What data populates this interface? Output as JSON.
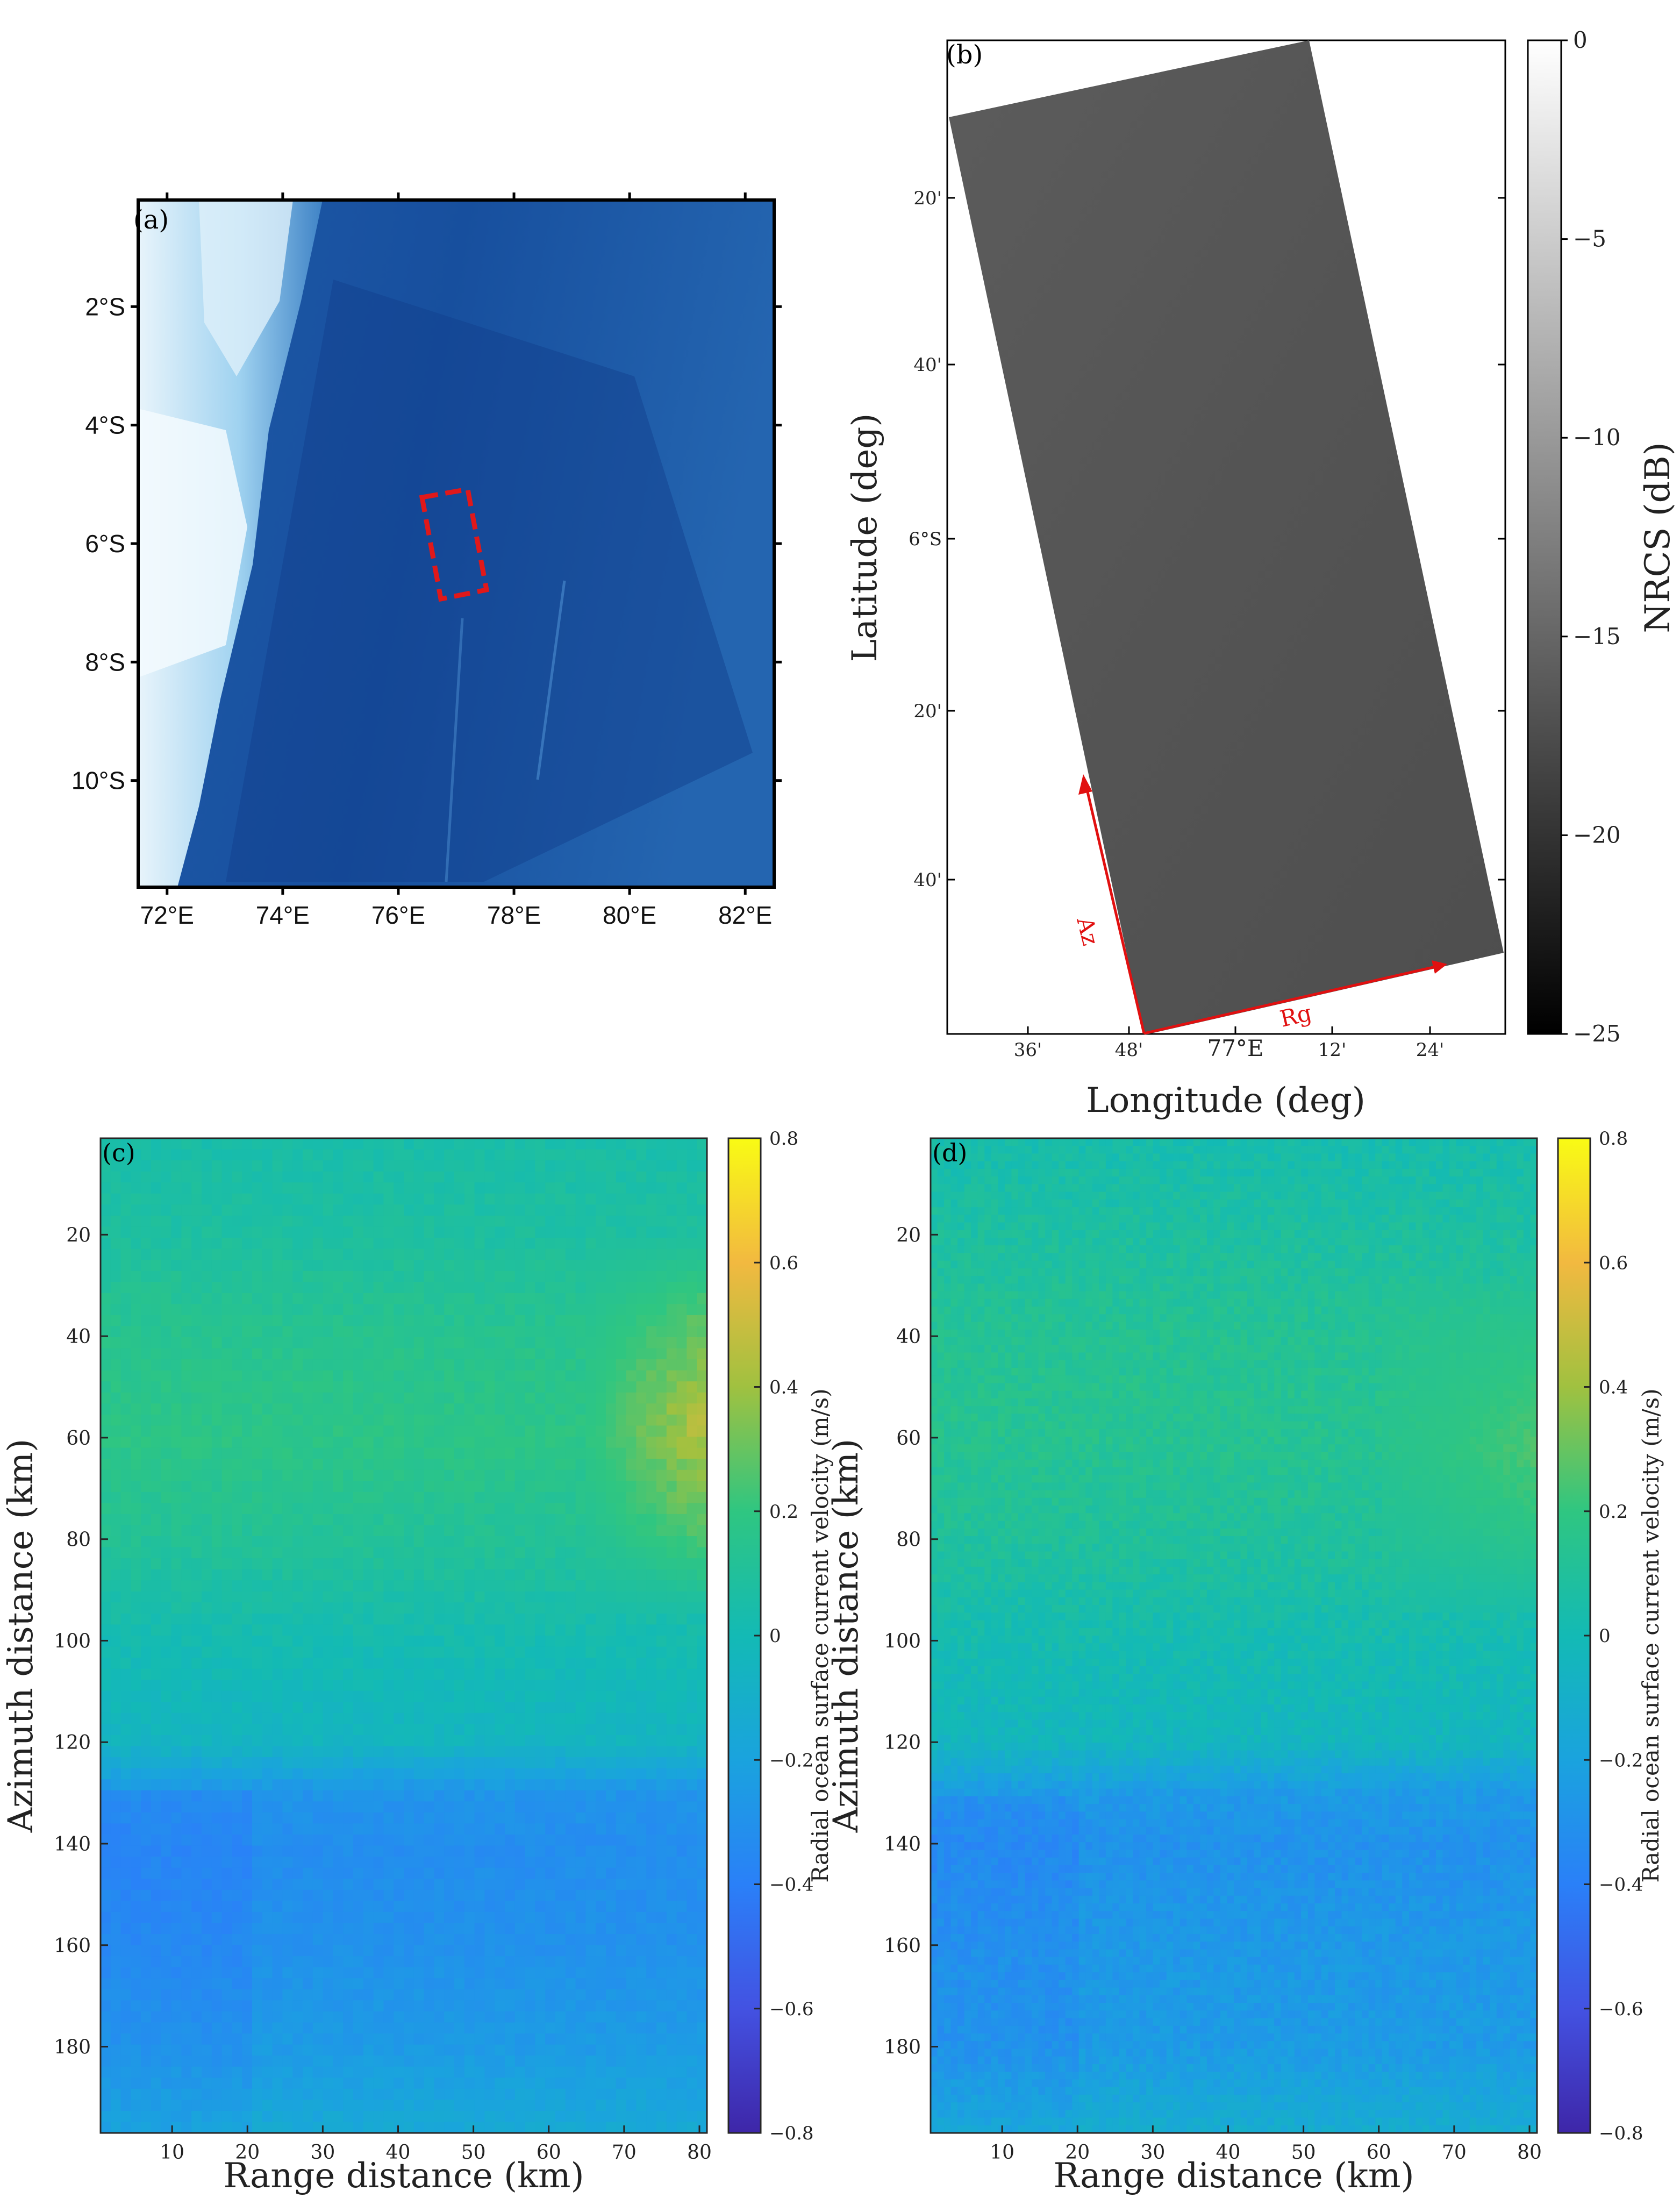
{
  "panels": {
    "a": {
      "label": "(a)",
      "lat_ticks": [
        "2°S",
        "4°S",
        "6°S",
        "8°S",
        "10°S"
      ],
      "lon_ticks": [
        "72°E",
        "74°E",
        "76°E",
        "78°E",
        "80°E",
        "82°E"
      ]
    },
    "b": {
      "label": "(b)",
      "xlabel": "Longitude (deg)",
      "ylabel": "Latitude (deg)",
      "lat_ticks": [
        "20'",
        "40'",
        "6°S",
        "20'",
        "40'"
      ],
      "lon_ticks": [
        "36'",
        "48'",
        "77°E",
        "12'",
        "24'"
      ],
      "colorbar_label": "NRCS (dB)",
      "colorbar_ticks": [
        "0",
        "−5",
        "−10",
        "−15",
        "−20",
        "−25"
      ],
      "arrow_az": "Az",
      "arrow_rg": "Rg"
    },
    "c": {
      "label": "(c)",
      "xlabel": "Range distance (km)",
      "ylabel": "Azimuth distance (km)",
      "xticks": [
        "10",
        "20",
        "30",
        "40",
        "50",
        "60",
        "70",
        "80"
      ],
      "yticks": [
        "20",
        "40",
        "60",
        "80",
        "100",
        "120",
        "140",
        "160",
        "180"
      ],
      "colorbar_label": "Radial ocean surface current velocity (m/s)",
      "colorbar_ticks": [
        "0.8",
        "0.6",
        "0.4",
        "0.2",
        "0",
        "−0.2",
        "−0.4",
        "−0.6",
        "−0.8"
      ]
    },
    "d": {
      "label": "(d)",
      "xlabel": "Range distance (km)",
      "ylabel": "Azimuth distance (km)",
      "xticks": [
        "10",
        "20",
        "30",
        "40",
        "50",
        "60",
        "70",
        "80"
      ],
      "yticks": [
        "20",
        "40",
        "60",
        "80",
        "100",
        "120",
        "140",
        "160",
        "180"
      ],
      "colorbar_label": "Radial ocean surface current velocity (m/s)",
      "colorbar_ticks": [
        "0.8",
        "0.6",
        "0.4",
        "0.2",
        "0",
        "−0.2",
        "−0.4",
        "−0.6",
        "−0.8"
      ]
    }
  },
  "chart_data": [
    {
      "type": "heatmap",
      "panel": "a",
      "lon_range": [
        71.5,
        82.5
      ],
      "lat_range": [
        -11.8,
        -0.2
      ],
      "annotation": "dashed red box marking SAR scene near 77°E, 5–7°S",
      "palette": [
        "#0d3d8f",
        "#2b66b8",
        "#8ec9ee",
        "#f0f8fd"
      ]
    },
    {
      "type": "heatmap",
      "panel": "b",
      "colorbar_range": [
        -25,
        0
      ],
      "approx_value": -14,
      "colors": {
        "high": "#ffffff",
        "low": "#000000",
        "arrow": "#e11010"
      }
    },
    {
      "type": "heatmap",
      "panel": "c",
      "x_range": [
        0.5,
        81
      ],
      "y_range": [
        197,
        1
      ],
      "colorbar_range": [
        -0.8,
        0.8
      ],
      "colormap": "parula",
      "azimuth_profile_km": [
        0,
        20,
        40,
        60,
        80,
        100,
        120,
        130,
        140,
        160,
        180,
        197
      ],
      "velocity_profile_ms": [
        0.05,
        0.08,
        0.15,
        0.18,
        0.12,
        0.02,
        -0.05,
        -0.28,
        -0.32,
        -0.3,
        -0.25,
        -0.15
      ],
      "hotspot": {
        "range_km": [
          65,
          81
        ],
        "azimuth_km": [
          20,
          95
        ],
        "peak_ms": 0.45
      }
    },
    {
      "type": "heatmap",
      "panel": "d",
      "x_range": [
        0.5,
        81
      ],
      "y_range": [
        197,
        1
      ],
      "colorbar_range": [
        -0.8,
        0.8
      ],
      "colormap": "parula",
      "azimuth_profile_km": [
        0,
        20,
        40,
        60,
        80,
        100,
        120,
        130,
        140,
        160,
        180,
        197
      ],
      "velocity_profile_ms": [
        0.03,
        0.08,
        0.13,
        0.14,
        0.1,
        0.02,
        -0.04,
        -0.25,
        -0.3,
        -0.26,
        -0.25,
        -0.12
      ],
      "hotspot": {
        "range_km": [
          60,
          81
        ],
        "azimuth_km": [
          30,
          95
        ],
        "peak_ms": 0.25
      }
    }
  ]
}
